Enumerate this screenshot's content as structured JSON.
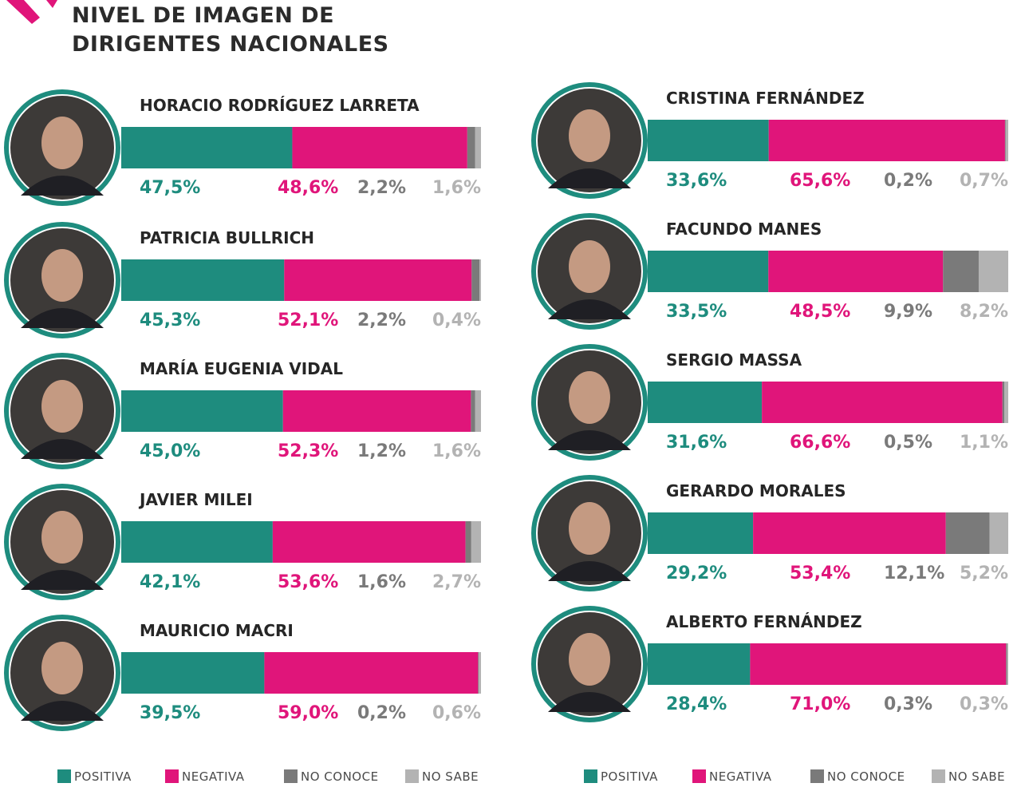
{
  "title_lines": [
    "NIVEL DE IMAGEN DE",
    "DIRIGENTES NACIONALES"
  ],
  "colors": {
    "positiva": "#1e8c7e",
    "negativa": "#e0157a",
    "no_conoce": "#7a7a7a",
    "no_sabe": "#b3b3b3",
    "ring": "#1e8c7e",
    "accent": "#e0157a"
  },
  "legend": [
    "POSITIVA",
    "NEGATIVA",
    "NO CONOCE",
    "NO SABE"
  ],
  "chart_data": [
    {
      "type": "bar",
      "stacked": true,
      "orientation": "horizontal",
      "title": "NIVEL DE IMAGEN DE DIRIGENTES NACIONALES",
      "categories": [
        "HORACIO RODRÍGUEZ LARRETA",
        "PATRICIA BULLRICH",
        "MARÍA EUGENIA VIDAL",
        "JAVIER MILEI",
        "MAURICIO MACRI"
      ],
      "series": [
        {
          "name": "POSITIVA",
          "values": [
            47.5,
            45.3,
            45.0,
            42.1,
            39.5
          ],
          "labels": [
            "47,5%",
            "45,3%",
            "45,0%",
            "42,1%",
            "39,5%"
          ]
        },
        {
          "name": "NEGATIVA",
          "values": [
            48.6,
            52.1,
            52.3,
            53.6,
            59.0
          ],
          "labels": [
            "48,6%",
            "52,1%",
            "52,3%",
            "53,6%",
            "59,0%"
          ]
        },
        {
          "name": "NO CONOCE",
          "values": [
            2.2,
            2.2,
            1.2,
            1.6,
            0.2
          ],
          "labels": [
            "2,2%",
            "2,2%",
            "1,2%",
            "1,6%",
            "0,2%"
          ]
        },
        {
          "name": "NO SABE",
          "values": [
            1.6,
            0.4,
            1.6,
            2.7,
            0.6
          ],
          "labels": [
            "1,6%",
            "0,4%",
            "1,6%",
            "2,7%",
            "0,6%"
          ]
        }
      ]
    },
    {
      "type": "bar",
      "stacked": true,
      "orientation": "horizontal",
      "categories": [
        "CRISTINA FERNÁNDEZ",
        "FACUNDO MANES",
        "SERGIO MASSA",
        "GERARDO MORALES",
        "ALBERTO FERNÁNDEZ"
      ],
      "series": [
        {
          "name": "POSITIVA",
          "values": [
            33.6,
            33.5,
            31.6,
            29.2,
            28.4
          ],
          "labels": [
            "33,6%",
            "33,5%",
            "31,6%",
            "29,2%",
            "28,4%"
          ]
        },
        {
          "name": "NEGATIVA",
          "values": [
            65.6,
            48.5,
            66.6,
            53.4,
            71.0
          ],
          "labels": [
            "65,6%",
            "48,5%",
            "66,6%",
            "53,4%",
            "71,0%"
          ]
        },
        {
          "name": "NO CONOCE",
          "values": [
            0.2,
            9.9,
            0.5,
            12.1,
            0.3
          ],
          "labels": [
            "0,2%",
            "9,9%",
            "0,5%",
            "12,1%",
            "0,3%"
          ]
        },
        {
          "name": "NO SABE",
          "values": [
            0.7,
            8.2,
            1.1,
            5.2,
            0.3
          ],
          "labels": [
            "0,7%",
            "8,2%",
            "1,1%",
            "5,2%",
            "0,3%"
          ]
        }
      ]
    }
  ]
}
